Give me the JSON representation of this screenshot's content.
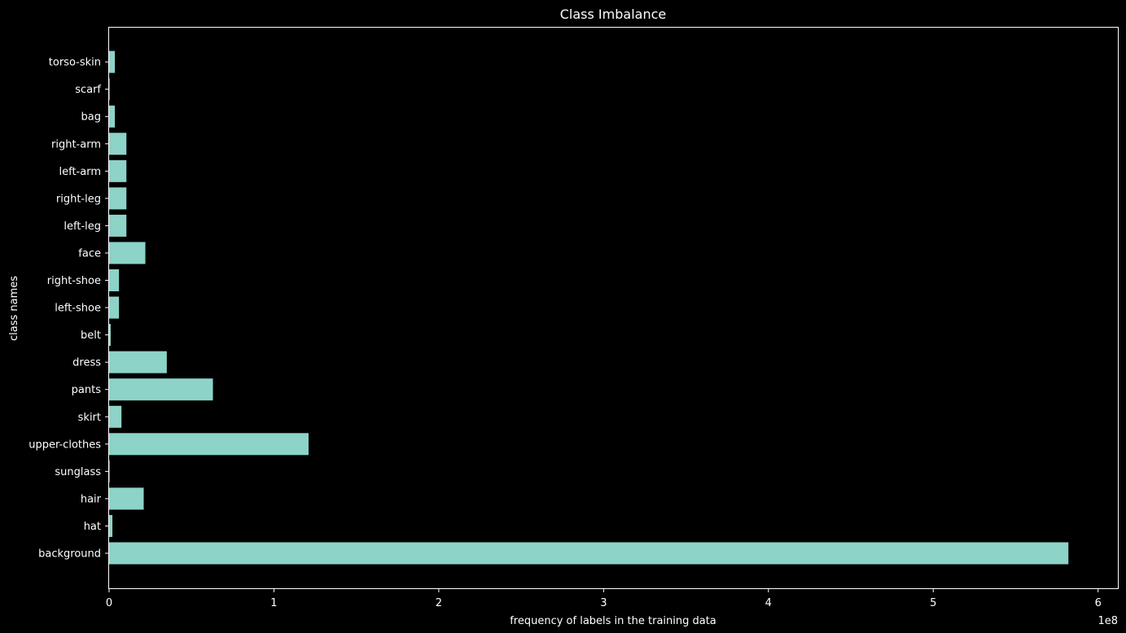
{
  "chart_data": {
    "type": "bar",
    "orientation": "horizontal",
    "title": "Class Imbalance",
    "xlabel": "frequency of labels in the training data",
    "ylabel": "class names",
    "x_offset_label": "1e8",
    "x_scale_multiplier": 100000000,
    "xlim": [
      0,
      6.12
    ],
    "x_ticks": [
      0,
      1,
      2,
      3,
      4,
      5,
      6
    ],
    "x_tick_labels": [
      "0",
      "1",
      "2",
      "3",
      "4",
      "5",
      "6"
    ],
    "categories": [
      "background",
      "hat",
      "hair",
      "sunglass",
      "upper-clothes",
      "skirt",
      "pants",
      "dress",
      "belt",
      "left-shoe",
      "right-shoe",
      "face",
      "left-leg",
      "right-leg",
      "left-arm",
      "right-arm",
      "bag",
      "scarf",
      "torso-skin"
    ],
    "values": [
      5.82,
      0.02,
      0.21,
      0.003,
      1.21,
      0.075,
      0.63,
      0.35,
      0.01,
      0.06,
      0.06,
      0.22,
      0.105,
      0.105,
      0.105,
      0.105,
      0.035,
      0.003,
      0.035
    ],
    "bar_color": "#8dd3c7",
    "background_color": "#000000",
    "foreground_color": "#ffffff",
    "grid": false,
    "legend": "none"
  }
}
